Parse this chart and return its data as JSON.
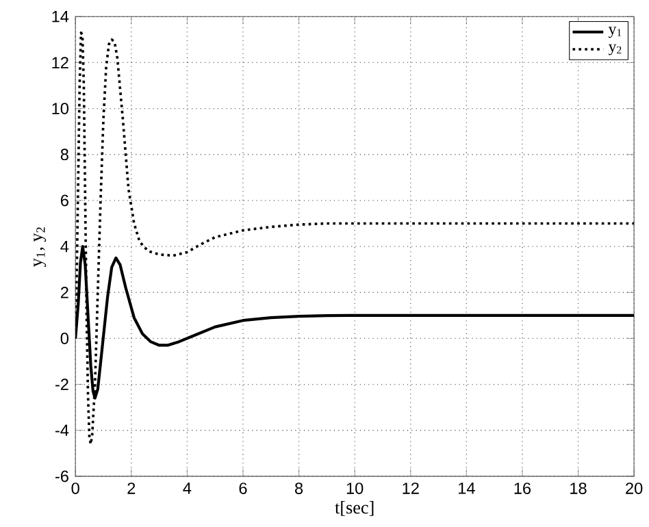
{
  "chart_data": {
    "type": "line",
    "xlabel": "t[sec]",
    "ylabel": "y$_{1}$, y$_{2}$",
    "xlim": [
      0,
      20
    ],
    "ylim": [
      -6,
      14
    ],
    "xticks": [
      0,
      2,
      4,
      6,
      8,
      10,
      12,
      14,
      16,
      18,
      20
    ],
    "yticks": [
      -6,
      -4,
      -2,
      0,
      2,
      4,
      6,
      8,
      10,
      12,
      14
    ],
    "grid": true,
    "legend": "top right",
    "series": [
      {
        "name": "y$_{1}$",
        "color": "#000000",
        "line_style": "solid",
        "x": [
          0,
          0.1,
          0.18,
          0.26,
          0.35,
          0.45,
          0.55,
          0.63,
          0.7,
          0.8,
          0.95,
          1.15,
          1.3,
          1.45,
          1.6,
          1.8,
          2.1,
          2.4,
          2.7,
          3.0,
          3.3,
          3.7,
          4.2,
          5,
          6,
          7,
          8,
          9,
          10,
          20
        ],
        "values": [
          0,
          1.5,
          3.3,
          4.0,
          3.2,
          1.0,
          -1.2,
          -2.3,
          -2.6,
          -2.2,
          -0.5,
          1.8,
          3.1,
          3.5,
          3.2,
          2.2,
          0.9,
          0.2,
          -0.15,
          -0.3,
          -0.3,
          -0.15,
          0.1,
          0.5,
          0.78,
          0.9,
          0.96,
          0.99,
          1,
          1
        ]
      },
      {
        "name": "y$_{2}$",
        "color": "#000000",
        "line_style": "dotted",
        "x": [
          0,
          0.05,
          0.1,
          0.15,
          0.2,
          0.25,
          0.3,
          0.35,
          0.4,
          0.45,
          0.5,
          0.55,
          0.6,
          0.7,
          0.8,
          0.9,
          1.0,
          1.1,
          1.2,
          1.3,
          1.4,
          1.5,
          1.7,
          1.9,
          2.1,
          2.3,
          2.6,
          3.0,
          3.5,
          4.0,
          4.5,
          5,
          6,
          7,
          8,
          9,
          10,
          20
        ],
        "values": [
          0,
          3,
          7,
          11,
          13.3,
          13.2,
          11,
          6,
          1,
          -2.5,
          -4.3,
          -4.6,
          -4.2,
          -2,
          2,
          6,
          9.5,
          11.8,
          12.8,
          13,
          12.9,
          12.2,
          9.5,
          6.5,
          5,
          4.2,
          3.8,
          3.65,
          3.6,
          3.75,
          4.1,
          4.4,
          4.7,
          4.85,
          4.95,
          5,
          5,
          5
        ]
      }
    ]
  }
}
